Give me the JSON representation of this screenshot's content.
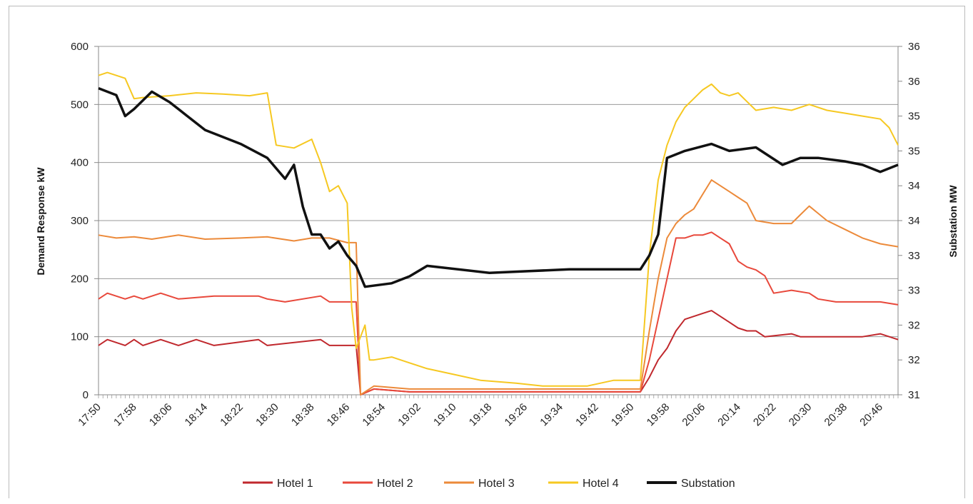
{
  "chart_data": {
    "type": "line",
    "title": "",
    "ylabel": "Demand Response kW",
    "y2label": "Substation MW",
    "ylim": [
      0,
      600
    ],
    "y2lim": [
      31,
      36
    ],
    "yticks": [
      "0",
      "100",
      "200",
      "300",
      "400",
      "500",
      "600"
    ],
    "y2ticks": [
      "31",
      "32",
      "32",
      "33",
      "33",
      "34",
      "34",
      "35",
      "35",
      "36",
      "36"
    ],
    "xticks": [
      "17:50",
      "17:58",
      "18:06",
      "18:14",
      "18:22",
      "18:30",
      "18:38",
      "18:46",
      "18:54",
      "19:02",
      "19:10",
      "19:18",
      "19:26",
      "19:34",
      "19:42",
      "19:50",
      "19:58",
      "20:06",
      "20:14",
      "20:22",
      "20:30",
      "20:38",
      "20:46"
    ],
    "x_start": "17:50",
    "x_end": "20:50",
    "grid": true,
    "legend_position": "bottom",
    "series": [
      {
        "name": "Hotel 1",
        "color": "#c0282d",
        "axis": "left",
        "x": [
          "17:50",
          "17:52",
          "17:56",
          "17:58",
          "18:00",
          "18:04",
          "18:08",
          "18:12",
          "18:16",
          "18:26",
          "18:28",
          "18:40",
          "18:42",
          "18:48",
          "18:49",
          "18:52",
          "19:00",
          "19:30",
          "19:52",
          "19:54",
          "19:56",
          "19:58",
          "20:00",
          "20:02",
          "20:04",
          "20:06",
          "20:08",
          "20:10",
          "20:12",
          "20:14",
          "20:16",
          "20:18",
          "20:20",
          "20:26",
          "20:28",
          "20:42",
          "20:46",
          "20:50"
        ],
        "values": [
          85,
          95,
          85,
          95,
          85,
          95,
          85,
          95,
          85,
          95,
          85,
          95,
          85,
          85,
          0,
          10,
          5,
          5,
          5,
          30,
          60,
          80,
          110,
          130,
          135,
          140,
          145,
          135,
          125,
          115,
          110,
          110,
          100,
          105,
          100,
          100,
          105,
          95
        ]
      },
      {
        "name": "Hotel 2",
        "color": "#e8483b",
        "axis": "left",
        "x": [
          "17:50",
          "17:52",
          "17:56",
          "17:58",
          "18:00",
          "18:04",
          "18:08",
          "18:16",
          "18:26",
          "18:28",
          "18:32",
          "18:40",
          "18:42",
          "18:48",
          "18:49",
          "18:52",
          "19:00",
          "19:30",
          "19:52",
          "19:54",
          "19:56",
          "19:58",
          "20:00",
          "20:02",
          "20:04",
          "20:06",
          "20:08",
          "20:10",
          "20:12",
          "20:14",
          "20:16",
          "20:18",
          "20:20",
          "20:22",
          "20:26",
          "20:30",
          "20:32",
          "20:36",
          "20:40",
          "20:46",
          "20:50"
        ],
        "values": [
          165,
          175,
          165,
          170,
          165,
          175,
          165,
          170,
          170,
          165,
          160,
          170,
          160,
          160,
          0,
          10,
          5,
          5,
          5,
          60,
          130,
          200,
          270,
          270,
          275,
          275,
          280,
          270,
          260,
          230,
          220,
          215,
          205,
          175,
          180,
          175,
          165,
          160,
          160,
          160,
          155
        ]
      },
      {
        "name": "Hotel 3",
        "color": "#ec8a3a",
        "axis": "left",
        "x": [
          "17:50",
          "17:54",
          "17:58",
          "18:02",
          "18:08",
          "18:14",
          "18:22",
          "18:28",
          "18:34",
          "18:38",
          "18:42",
          "18:46",
          "18:48",
          "18:49",
          "18:52",
          "19:00",
          "19:30",
          "19:52",
          "19:54",
          "19:56",
          "19:58",
          "20:00",
          "20:02",
          "20:04",
          "20:06",
          "20:08",
          "20:10",
          "20:12",
          "20:14",
          "20:16",
          "20:18",
          "20:22",
          "20:26",
          "20:28",
          "20:30",
          "20:34",
          "20:38",
          "20:42",
          "20:46",
          "20:50"
        ],
        "values": [
          275,
          270,
          272,
          268,
          275,
          268,
          270,
          272,
          265,
          270,
          270,
          262,
          262,
          0,
          15,
          10,
          10,
          10,
          110,
          200,
          270,
          295,
          310,
          320,
          345,
          370,
          360,
          350,
          340,
          330,
          300,
          295,
          295,
          310,
          325,
          300,
          285,
          270,
          260,
          255
        ]
      },
      {
        "name": "Hotel 4",
        "color": "#f6c821",
        "axis": "left",
        "x": [
          "17:50",
          "17:52",
          "17:56",
          "17:58",
          "18:00",
          "18:06",
          "18:12",
          "18:18",
          "18:24",
          "18:28",
          "18:30",
          "18:34",
          "18:38",
          "18:40",
          "18:42",
          "18:44",
          "18:46",
          "18:47",
          "18:48",
          "18:50",
          "18:51",
          "18:52",
          "18:56",
          "19:00",
          "19:04",
          "19:10",
          "19:16",
          "19:24",
          "19:30",
          "19:40",
          "19:46",
          "19:52",
          "19:54",
          "19:56",
          "19:58",
          "20:00",
          "20:02",
          "20:04",
          "20:06",
          "20:08",
          "20:10",
          "20:12",
          "20:14",
          "20:16",
          "20:18",
          "20:22",
          "20:26",
          "20:30",
          "20:34",
          "20:38",
          "20:42",
          "20:46",
          "20:48",
          "20:50"
        ],
        "values": [
          550,
          555,
          545,
          510,
          512,
          515,
          520,
          518,
          515,
          520,
          430,
          425,
          440,
          400,
          350,
          360,
          330,
          150,
          80,
          120,
          60,
          60,
          65,
          55,
          45,
          35,
          25,
          20,
          15,
          15,
          25,
          25,
          240,
          370,
          430,
          470,
          495,
          510,
          525,
          535,
          520,
          515,
          520,
          505,
          490,
          495,
          490,
          500,
          490,
          485,
          480,
          475,
          460,
          430
        ]
      },
      {
        "name": "Substation",
        "color": "#111111",
        "axis": "right",
        "x": [
          "17:50",
          "17:54",
          "17:56",
          "17:58",
          "18:02",
          "18:06",
          "18:10",
          "18:14",
          "18:22",
          "18:28",
          "18:32",
          "18:34",
          "18:36",
          "18:38",
          "18:40",
          "18:42",
          "18:44",
          "18:46",
          "18:48",
          "18:50",
          "18:56",
          "19:00",
          "19:04",
          "19:18",
          "19:36",
          "19:52",
          "19:54",
          "19:56",
          "19:58",
          "20:02",
          "20:08",
          "20:12",
          "20:18",
          "20:24",
          "20:28",
          "20:32",
          "20:38",
          "20:42",
          "20:46",
          "20:50"
        ],
        "values": [
          35.4,
          35.3,
          35.0,
          35.1,
          35.35,
          35.2,
          35.0,
          34.8,
          34.6,
          34.4,
          34.1,
          34.3,
          33.7,
          33.3,
          33.3,
          33.1,
          33.2,
          33.0,
          32.85,
          32.55,
          32.6,
          32.7,
          32.85,
          32.75,
          32.8,
          32.8,
          33.0,
          33.3,
          34.4,
          34.5,
          34.6,
          34.5,
          34.55,
          34.3,
          34.4,
          34.4,
          34.35,
          34.3,
          34.2,
          34.3
        ]
      }
    ]
  }
}
